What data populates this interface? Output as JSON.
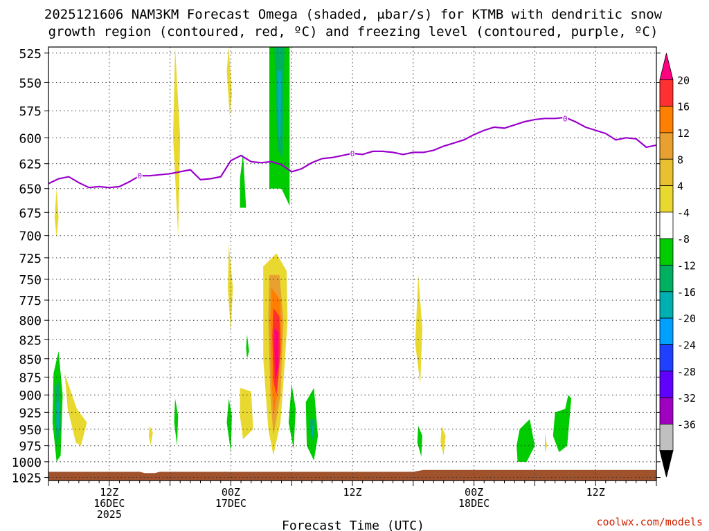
{
  "chart_data": {
    "type": "heatmap",
    "title_line1": "2025121606 NAM3KM Forecast Omega (shaded, μbar/s) for KTMB with dendritic snow",
    "title_line2": "growth region (contoured, red, ºC) and freezing level (contoured, purple, ºC)",
    "xlabel": "Forecast Time (UTC)",
    "credit": "coolwx.com/models",
    "x_range_hours": [
      0,
      60
    ],
    "y_levels": [
      525,
      550,
      575,
      600,
      625,
      650,
      675,
      700,
      725,
      750,
      775,
      800,
      825,
      850,
      875,
      900,
      925,
      950,
      975,
      1000,
      1025
    ],
    "y_range": [
      520,
      1030
    ],
    "y_scale": "log-pressure",
    "grid": true,
    "x_ticks": [
      {
        "hour": 6,
        "lines": [
          "12Z",
          "16DEC",
          "2025"
        ]
      },
      {
        "hour": 18,
        "lines": [
          "00Z",
          "17DEC"
        ]
      },
      {
        "hour": 30,
        "lines": [
          "12Z"
        ]
      },
      {
        "hour": 42,
        "lines": [
          "00Z",
          "18DEC"
        ]
      },
      {
        "hour": 54,
        "lines": [
          "12Z"
        ]
      }
    ],
    "colorbar": {
      "labels": [
        "20",
        "16",
        "12",
        "8",
        "4",
        "-4",
        "-8",
        "-12",
        "-16",
        "-20",
        "-24",
        "-28",
        "-32",
        "-36"
      ],
      "colors": [
        "#ff0080",
        "#ff3030",
        "#ff8000",
        "#e8a030",
        "#e8c030",
        "#e8d830",
        "#ffffff",
        "#00cc00",
        "#00b060",
        "#00b0b0",
        "#00a0ff",
        "#2040ff",
        "#6000ff",
        "#a000c0",
        "#c0c0c0",
        "#000000"
      ]
    },
    "freezing_level": {
      "color": "#9900cc",
      "label": "0",
      "points": [
        [
          0,
          645
        ],
        [
          1,
          640
        ],
        [
          2,
          638
        ],
        [
          3,
          644
        ],
        [
          4,
          649
        ],
        [
          5,
          648
        ],
        [
          6,
          649
        ],
        [
          7,
          648
        ],
        [
          8,
          643
        ],
        [
          9,
          637
        ],
        [
          10,
          637
        ],
        [
          11,
          636
        ],
        [
          12,
          635
        ],
        [
          13,
          633
        ],
        [
          14,
          631
        ],
        [
          15,
          641
        ],
        [
          16,
          640
        ],
        [
          17,
          638
        ],
        [
          18,
          622
        ],
        [
          19,
          617
        ],
        [
          20,
          623
        ],
        [
          21,
          624
        ],
        [
          22,
          623
        ],
        [
          23,
          626
        ],
        [
          24,
          633
        ],
        [
          25,
          630
        ],
        [
          26,
          624
        ],
        [
          27,
          620
        ],
        [
          28,
          619
        ],
        [
          29,
          617
        ],
        [
          30,
          615
        ],
        [
          31,
          616
        ],
        [
          32,
          613
        ],
        [
          33,
          613
        ],
        [
          34,
          614
        ],
        [
          35,
          616
        ],
        [
          36,
          614
        ],
        [
          37,
          614
        ],
        [
          38,
          612
        ],
        [
          39,
          608
        ],
        [
          40,
          605
        ],
        [
          41,
          602
        ],
        [
          42,
          597
        ],
        [
          43,
          593
        ],
        [
          44,
          590
        ],
        [
          45,
          591
        ],
        [
          46,
          588
        ],
        [
          47,
          585
        ],
        [
          48,
          583
        ],
        [
          49,
          582
        ],
        [
          50,
          582
        ],
        [
          51,
          581
        ],
        [
          52,
          585
        ],
        [
          53,
          590
        ],
        [
          54,
          593
        ],
        [
          55,
          596
        ],
        [
          56,
          602
        ],
        [
          57,
          600
        ],
        [
          58,
          601
        ],
        [
          59,
          609
        ],
        [
          60,
          607
        ]
      ],
      "label_positions": [
        [
          9,
          637
        ],
        [
          30,
          615
        ],
        [
          51,
          582
        ]
      ]
    },
    "omega_regions": [
      {
        "color": "#e8d830",
        "pts": [
          [
            12.5,
            520
          ],
          [
            13.0,
            600
          ],
          [
            12.8,
            700
          ],
          [
            12.3,
            600
          ]
        ]
      },
      {
        "color": "#e8d830",
        "pts": [
          [
            17.8,
            520
          ],
          [
            18.1,
            560
          ],
          [
            17.9,
            580
          ],
          [
            17.6,
            540
          ]
        ]
      },
      {
        "color": "#00cc00",
        "pts": [
          [
            21.8,
            520
          ],
          [
            23.8,
            520
          ],
          [
            23.8,
            668
          ],
          [
            23.0,
            650
          ],
          [
            21.8,
            650
          ]
        ]
      },
      {
        "color": "#00b060",
        "pts": [
          [
            22.3,
            520
          ],
          [
            23.3,
            520
          ],
          [
            23.1,
            620
          ],
          [
            22.6,
            610
          ]
        ]
      },
      {
        "color": "#00b0b0",
        "pts": [
          [
            22.6,
            540
          ],
          [
            23.0,
            540
          ],
          [
            22.9,
            600
          ],
          [
            22.7,
            600
          ]
        ]
      },
      {
        "color": "#00cc00",
        "pts": [
          [
            19.2,
            615
          ],
          [
            19.5,
            670
          ],
          [
            18.9,
            670
          ],
          [
            18.9,
            640
          ]
        ]
      },
      {
        "color": "#e8d830",
        "pts": [
          [
            0.8,
            650
          ],
          [
            1.0,
            680
          ],
          [
            0.8,
            702
          ],
          [
            0.6,
            680
          ]
        ]
      },
      {
        "color": "#e8d830",
        "pts": [
          [
            17.8,
            710
          ],
          [
            18.2,
            760
          ],
          [
            18.0,
            815
          ],
          [
            17.7,
            760
          ]
        ]
      },
      {
        "color": "#e8d830",
        "pts": [
          [
            21.2,
            735
          ],
          [
            22.5,
            720
          ],
          [
            23.5,
            740
          ],
          [
            23.6,
            800
          ],
          [
            23.2,
            880
          ],
          [
            22.9,
            940
          ],
          [
            22.2,
            990
          ],
          [
            21.7,
            950
          ],
          [
            21.2,
            850
          ]
        ]
      },
      {
        "color": "#e8a030",
        "pts": [
          [
            21.8,
            745
          ],
          [
            22.8,
            745
          ],
          [
            23.2,
            800
          ],
          [
            22.9,
            900
          ],
          [
            22.2,
            960
          ],
          [
            21.9,
            900
          ],
          [
            21.7,
            800
          ]
        ]
      },
      {
        "color": "#ff8000",
        "pts": [
          [
            22.0,
            760
          ],
          [
            22.9,
            775
          ],
          [
            23.0,
            830
          ],
          [
            22.6,
            900
          ],
          [
            22.2,
            930
          ],
          [
            22.0,
            870
          ],
          [
            21.9,
            800
          ]
        ]
      },
      {
        "color": "#ff3030",
        "pts": [
          [
            22.2,
            785
          ],
          [
            22.8,
            795
          ],
          [
            22.9,
            840
          ],
          [
            22.5,
            900
          ],
          [
            22.2,
            880
          ],
          [
            22.1,
            820
          ]
        ]
      },
      {
        "color": "#ff0080",
        "pts": [
          [
            22.3,
            810
          ],
          [
            22.7,
            815
          ],
          [
            22.7,
            860
          ],
          [
            22.4,
            880
          ],
          [
            22.3,
            840
          ]
        ]
      },
      {
        "color": "#00cc00",
        "pts": [
          [
            19.6,
            818
          ],
          [
            19.8,
            840
          ],
          [
            19.6,
            850
          ],
          [
            19.5,
            835
          ]
        ]
      },
      {
        "color": "#e8d830",
        "pts": [
          [
            36.5,
            745
          ],
          [
            36.9,
            810
          ],
          [
            36.7,
            885
          ],
          [
            36.2,
            830
          ]
        ]
      },
      {
        "color": "#00cc00",
        "pts": [
          [
            0.5,
            870
          ],
          [
            1.0,
            840
          ],
          [
            1.4,
            900
          ],
          [
            1.2,
            990
          ],
          [
            0.8,
            1000
          ],
          [
            0.4,
            940
          ]
        ]
      },
      {
        "color": "#00b060",
        "pts": [
          [
            0.6,
            890
          ],
          [
            1.1,
            880
          ],
          [
            1.2,
            950
          ],
          [
            0.8,
            975
          ]
        ]
      },
      {
        "color": "#00b0b0",
        "pts": [
          [
            0.8,
            910
          ],
          [
            1.1,
            910
          ],
          [
            1.0,
            950
          ],
          [
            0.8,
            945
          ]
        ]
      },
      {
        "color": "#e8d830",
        "pts": [
          [
            1.6,
            870
          ],
          [
            2.8,
            920
          ],
          [
            3.8,
            940
          ],
          [
            3.2,
            975
          ],
          [
            2.7,
            970
          ],
          [
            1.9,
            920
          ]
        ]
      },
      {
        "color": "#e8d830",
        "pts": [
          [
            10.0,
            945
          ],
          [
            10.3,
            955
          ],
          [
            10.1,
            975
          ],
          [
            9.9,
            960
          ]
        ]
      },
      {
        "color": "#00cc00",
        "pts": [
          [
            12.5,
            905
          ],
          [
            12.8,
            930
          ],
          [
            12.7,
            975
          ],
          [
            12.4,
            940
          ]
        ]
      },
      {
        "color": "#00cc00",
        "pts": [
          [
            17.8,
            905
          ],
          [
            18.1,
            930
          ],
          [
            18.0,
            985
          ],
          [
            17.6,
            940
          ]
        ]
      },
      {
        "color": "#e8d830",
        "pts": [
          [
            18.9,
            890
          ],
          [
            20.0,
            895
          ],
          [
            20.2,
            950
          ],
          [
            19.2,
            965
          ],
          [
            18.9,
            930
          ]
        ]
      },
      {
        "color": "#00cc00",
        "pts": [
          [
            24.0,
            885
          ],
          [
            24.4,
            920
          ],
          [
            24.2,
            980
          ],
          [
            23.7,
            940
          ]
        ]
      },
      {
        "color": "#00cc00",
        "pts": [
          [
            25.4,
            910
          ],
          [
            26.2,
            890
          ],
          [
            26.6,
            960
          ],
          [
            26.2,
            998
          ],
          [
            25.5,
            975
          ]
        ]
      },
      {
        "color": "#00b060",
        "pts": [
          [
            25.8,
            935
          ],
          [
            26.3,
            935
          ],
          [
            26.2,
            965
          ],
          [
            25.9,
            965
          ]
        ]
      },
      {
        "color": "#00b0b0",
        "pts": [
          [
            26.0,
            945
          ],
          [
            26.2,
            945
          ],
          [
            26.1,
            960
          ],
          [
            26.0,
            960
          ]
        ]
      },
      {
        "color": "#00cc00",
        "pts": [
          [
            36.5,
            945
          ],
          [
            36.9,
            960
          ],
          [
            36.8,
            992
          ],
          [
            36.4,
            970
          ]
        ]
      },
      {
        "color": "#e8d830",
        "pts": [
          [
            38.8,
            945
          ],
          [
            39.2,
            960
          ],
          [
            39.0,
            990
          ],
          [
            38.7,
            970
          ]
        ]
      },
      {
        "color": "#00cc00",
        "pts": [
          [
            46.5,
            950
          ],
          [
            47.5,
            935
          ],
          [
            48.0,
            975
          ],
          [
            47.2,
            1000
          ],
          [
            46.3,
            1000
          ],
          [
            46.2,
            975
          ]
        ]
      },
      {
        "color": "#e8d830",
        "pts": [
          [
            49.0,
            955
          ],
          [
            49.2,
            975
          ],
          [
            49.0,
            985
          ]
        ]
      },
      {
        "color": "#00cc00",
        "pts": [
          [
            50.0,
            925
          ],
          [
            51.0,
            920
          ],
          [
            51.3,
            900
          ],
          [
            51.6,
            905
          ],
          [
            51.2,
            975
          ],
          [
            50.4,
            985
          ],
          [
            49.8,
            960
          ]
        ]
      }
    ],
    "terrain": {
      "color": "#a0522d",
      "pts": [
        [
          0,
          1016
        ],
        [
          9,
          1016
        ],
        [
          9.5,
          1018
        ],
        [
          10.5,
          1018
        ],
        [
          11,
          1016
        ],
        [
          36,
          1016
        ],
        [
          37,
          1013
        ],
        [
          60,
          1013
        ],
        [
          60,
          1030
        ],
        [
          0,
          1030
        ]
      ]
    }
  }
}
